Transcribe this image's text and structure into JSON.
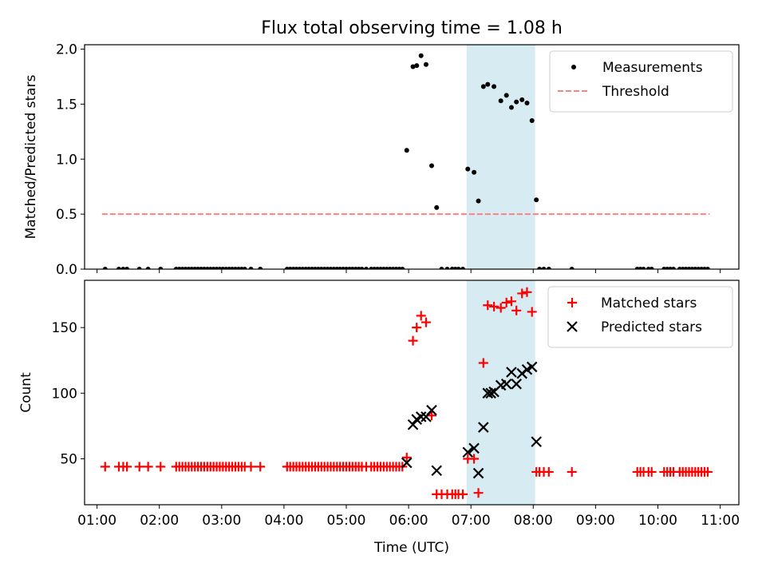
{
  "figure": {
    "title": "Flux total observing time = 1.08 h"
  },
  "chart_data": [
    {
      "type": "scatter",
      "xlabel": "",
      "ylabel": "Matched/Predicted stars",
      "xlim": [
        0.8,
        11.3
      ],
      "ylim": [
        0.0,
        2.04
      ],
      "yticks": [
        "0.0",
        "0.5",
        "1.0",
        "1.5",
        "2.0"
      ],
      "ytick_values": [
        0.0,
        0.5,
        1.0,
        1.5,
        2.0
      ],
      "highlight_span": [
        6.93,
        8.03
      ],
      "legend_position": "upper right",
      "series": [
        {
          "name": "Measurements",
          "kind": "dot",
          "color": "#000000",
          "x": [
            1.13,
            1.35,
            1.42,
            1.48,
            1.68,
            1.82,
            2.02,
            2.27,
            2.32,
            2.37,
            2.42,
            2.47,
            2.52,
            2.57,
            2.62,
            2.67,
            2.72,
            2.77,
            2.82,
            2.87,
            2.92,
            2.97,
            3.02,
            3.07,
            3.12,
            3.17,
            3.22,
            3.27,
            3.32,
            3.37,
            3.47,
            3.62,
            4.05,
            4.1,
            4.15,
            4.2,
            4.25,
            4.3,
            4.35,
            4.4,
            4.45,
            4.5,
            4.55,
            4.6,
            4.65,
            4.7,
            4.75,
            4.8,
            4.85,
            4.9,
            4.95,
            5.0,
            5.05,
            5.1,
            5.15,
            5.2,
            5.25,
            5.32,
            5.4,
            5.45,
            5.5,
            5.55,
            5.6,
            5.65,
            5.7,
            5.75,
            5.8,
            5.85,
            5.9,
            5.97,
            6.07,
            6.13,
            6.2,
            6.28,
            6.37,
            6.45,
            6.53,
            6.62,
            6.7,
            6.75,
            6.8,
            6.87,
            6.95,
            7.05,
            7.12,
            7.2,
            7.27,
            7.37,
            7.48,
            7.57,
            7.65,
            7.73,
            7.82,
            7.9,
            7.98,
            8.05,
            8.1,
            8.17,
            8.25,
            8.62,
            9.67,
            9.72,
            9.77,
            9.85,
            9.9,
            10.1,
            10.15,
            10.2,
            10.25,
            10.35,
            10.4,
            10.45,
            10.5,
            10.55,
            10.6,
            10.65,
            10.7,
            10.75,
            10.8
          ],
          "y": [
            0.0,
            0.0,
            0.0,
            0.0,
            0.0,
            0.0,
            0.0,
            0.0,
            0.0,
            0.0,
            0.0,
            0.0,
            0.0,
            0.0,
            0.0,
            0.0,
            0.0,
            0.0,
            0.0,
            0.0,
            0.0,
            0.0,
            0.0,
            0.0,
            0.0,
            0.0,
            0.0,
            0.0,
            0.0,
            0.0,
            0.0,
            0.0,
            0.0,
            0.0,
            0.0,
            0.0,
            0.0,
            0.0,
            0.0,
            0.0,
            0.0,
            0.0,
            0.0,
            0.0,
            0.0,
            0.0,
            0.0,
            0.0,
            0.0,
            0.0,
            0.0,
            0.0,
            0.0,
            0.0,
            0.0,
            0.0,
            0.0,
            0.0,
            0.0,
            0.0,
            0.0,
            0.0,
            0.0,
            0.0,
            0.0,
            0.0,
            0.0,
            0.0,
            0.0,
            1.08,
            1.84,
            1.85,
            1.94,
            1.86,
            0.94,
            0.56,
            0.0,
            0.0,
            0.0,
            0.0,
            0.0,
            0.0,
            0.91,
            0.88,
            0.62,
            1.66,
            1.68,
            1.66,
            1.53,
            1.58,
            1.47,
            1.52,
            1.54,
            1.51,
            1.35,
            0.63,
            0.0,
            0.0,
            0.0,
            0.0,
            0.0,
            0.0,
            0.0,
            0.0,
            0.0,
            0.0,
            0.0,
            0.0,
            0.0,
            0.0,
            0.0,
            0.0,
            0.0,
            0.0,
            0.0,
            0.0,
            0.0,
            0.0,
            0.0
          ]
        },
        {
          "name": "Threshold",
          "kind": "dashed-line",
          "color": "#ff8080",
          "x": [
            1.08,
            10.83
          ],
          "y": [
            0.5,
            0.5
          ]
        }
      ]
    },
    {
      "type": "scatter",
      "xlabel": "Time (UTC)",
      "ylabel": "Count",
      "xlim": [
        0.8,
        11.3
      ],
      "ylim": [
        15,
        186
      ],
      "yticks": [
        "50",
        "100",
        "150"
      ],
      "ytick_values": [
        50,
        100,
        150
      ],
      "xticks": [
        "01:00",
        "02:00",
        "03:00",
        "04:00",
        "05:00",
        "06:00",
        "07:00",
        "08:00",
        "09:00",
        "10:00",
        "11:00"
      ],
      "xtick_values": [
        1,
        2,
        3,
        4,
        5,
        6,
        7,
        8,
        9,
        10,
        11
      ],
      "highlight_span": [
        6.93,
        8.03
      ],
      "legend_position": "upper right",
      "series": [
        {
          "name": "Matched stars",
          "kind": "plus",
          "color": "#ff0000",
          "x": [
            1.13,
            1.35,
            1.42,
            1.48,
            1.68,
            1.82,
            2.02,
            2.27,
            2.32,
            2.37,
            2.42,
            2.47,
            2.52,
            2.57,
            2.62,
            2.67,
            2.72,
            2.77,
            2.82,
            2.87,
            2.92,
            2.97,
            3.02,
            3.07,
            3.12,
            3.17,
            3.22,
            3.27,
            3.32,
            3.37,
            3.47,
            3.62,
            4.05,
            4.1,
            4.15,
            4.2,
            4.25,
            4.3,
            4.35,
            4.4,
            4.45,
            4.5,
            4.55,
            4.6,
            4.65,
            4.7,
            4.75,
            4.8,
            4.85,
            4.9,
            4.95,
            5.0,
            5.05,
            5.1,
            5.15,
            5.2,
            5.25,
            5.32,
            5.4,
            5.45,
            5.5,
            5.55,
            5.6,
            5.65,
            5.7,
            5.75,
            5.8,
            5.85,
            5.9,
            5.97,
            6.07,
            6.13,
            6.2,
            6.28,
            6.37,
            6.45,
            6.53,
            6.62,
            6.7,
            6.75,
            6.8,
            6.87,
            6.95,
            7.05,
            7.12,
            7.2,
            7.27,
            7.37,
            7.48,
            7.57,
            7.65,
            7.73,
            7.82,
            7.9,
            7.98,
            8.05,
            8.1,
            8.17,
            8.25,
            8.62,
            9.67,
            9.72,
            9.77,
            9.85,
            9.9,
            10.1,
            10.15,
            10.2,
            10.25,
            10.35,
            10.4,
            10.45,
            10.5,
            10.55,
            10.6,
            10.65,
            10.7,
            10.75,
            10.8
          ],
          "y": [
            44,
            44,
            44,
            44,
            44,
            44,
            44,
            44,
            44,
            44,
            44,
            44,
            44,
            44,
            44,
            44,
            44,
            44,
            44,
            44,
            44,
            44,
            44,
            44,
            44,
            44,
            44,
            44,
            44,
            44,
            44,
            44,
            44,
            44,
            44,
            44,
            44,
            44,
            44,
            44,
            44,
            44,
            44,
            44,
            44,
            44,
            44,
            44,
            44,
            44,
            44,
            44,
            44,
            44,
            44,
            44,
            44,
            44,
            44,
            44,
            44,
            44,
            44,
            44,
            44,
            44,
            44,
            44,
            44,
            51,
            140,
            150,
            159,
            154,
            83,
            23,
            23,
            23,
            23,
            23,
            23,
            23,
            50,
            50,
            24,
            123,
            167,
            166,
            165,
            169,
            170,
            163,
            176,
            177,
            162,
            40,
            40,
            40,
            40,
            40,
            40,
            40,
            40,
            40,
            40,
            40,
            40,
            40,
            40,
            40,
            40,
            40,
            40,
            40,
            40,
            40,
            40,
            40,
            40
          ]
        },
        {
          "name": "Predicted stars",
          "kind": "cross",
          "color": "#000000",
          "x": [
            5.97,
            6.07,
            6.13,
            6.2,
            6.28,
            6.37,
            6.45,
            6.95,
            7.05,
            7.12,
            7.2,
            7.27,
            7.32,
            7.37,
            7.48,
            7.57,
            7.65,
            7.73,
            7.82,
            7.9,
            7.98,
            8.05
          ],
          "y": [
            47,
            76,
            80,
            82,
            82,
            87,
            41,
            55,
            58,
            39,
            74,
            100,
            100,
            101,
            106,
            107,
            116,
            107,
            115,
            118,
            120,
            63
          ]
        }
      ]
    }
  ]
}
